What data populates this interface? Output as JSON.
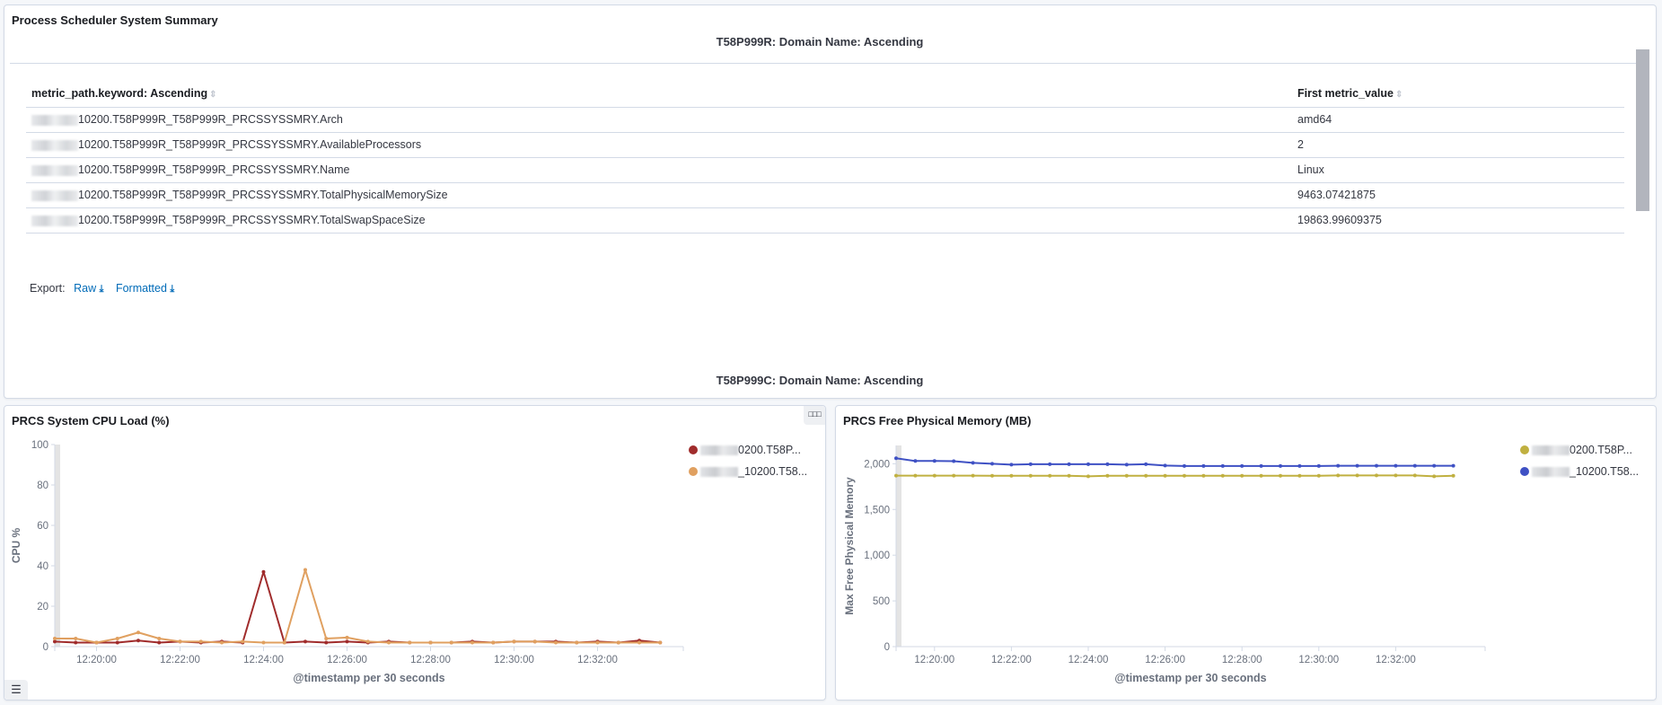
{
  "summary_panel": {
    "title": "Process Scheduler System Summary",
    "domain_title_1": "T58P999R: Domain Name: Ascending",
    "domain_title_2": "T58P999C: Domain Name: Ascending",
    "columns": [
      "metric_path.keyword: Ascending",
      "First metric_value"
    ],
    "sort_icon": "sort-icon",
    "rows": [
      {
        "path": "10200.T58P999R_T58P999R_PRCSSYSSMRY.Arch",
        "value": "amd64"
      },
      {
        "path": "10200.T58P999R_T58P999R_PRCSSYSSMRY.AvailableProcessors",
        "value": "2"
      },
      {
        "path": "10200.T58P999R_T58P999R_PRCSSYSSMRY.Name",
        "value": "Linux"
      },
      {
        "path": "10200.T58P999R_T58P999R_PRCSSYSSMRY.TotalPhysicalMemorySize",
        "value": "9463.07421875"
      },
      {
        "path": "10200.T58P999R_T58P999R_PRCSSYSSMRY.TotalSwapSpaceSize",
        "value": "19863.99609375"
      }
    ],
    "export": {
      "label": "Export:",
      "raw": "Raw",
      "formatted": "Formatted"
    }
  },
  "cpu_panel": {
    "title": "PRCS System CPU Load (%)",
    "options_icon": "ellipsis-icon",
    "legend": [
      {
        "label": "0200.T58P...",
        "color": "#a02c2c"
      },
      {
        "label": "_10200.T58...",
        "color": "#e0a060"
      }
    ]
  },
  "mem_panel": {
    "title": "PRCS Free Physical Memory (MB)",
    "legend": [
      {
        "label": "0200.T58P...",
        "color": "#c0b040"
      },
      {
        "label": "_10200.T58...",
        "color": "#3f51c4"
      }
    ]
  },
  "chart_data": [
    {
      "type": "line",
      "title": "PRCS System CPU Load (%)",
      "xlabel": "@timestamp per 30 seconds",
      "ylabel": "CPU %",
      "ylim": [
        0,
        100
      ],
      "yticks": [
        0,
        20,
        40,
        60,
        80,
        100
      ],
      "xticks": [
        "12:20:00",
        "12:22:00",
        "12:24:00",
        "12:26:00",
        "12:28:00",
        "12:30:00",
        "12:32:00"
      ],
      "x": [
        "12:19:00",
        "12:19:30",
        "12:20:00",
        "12:20:30",
        "12:21:00",
        "12:21:30",
        "12:22:00",
        "12:22:30",
        "12:23:00",
        "12:23:30",
        "12:24:00",
        "12:24:30",
        "12:25:00",
        "12:25:30",
        "12:26:00",
        "12:26:30",
        "12:27:00",
        "12:27:30",
        "12:28:00",
        "12:28:30",
        "12:29:00",
        "12:29:30",
        "12:30:00",
        "12:30:30",
        "12:31:00",
        "12:31:30",
        "12:32:00",
        "12:32:30",
        "12:33:00",
        "12:33:30"
      ],
      "series": [
        {
          "name": "…10200.T58P…",
          "color": "#a02c2c",
          "values": [
            2.5,
            2,
            2,
            2,
            3,
            2,
            2.5,
            2,
            2.5,
            2,
            37,
            2,
            2.5,
            2,
            2.5,
            2,
            2.5,
            2,
            2,
            2,
            2.5,
            2,
            2.5,
            2.5,
            2.5,
            2,
            2.5,
            2,
            3,
            2
          ]
        },
        {
          "name": "…_10200.T58…",
          "color": "#e0a060",
          "values": [
            4,
            4,
            2,
            4,
            7,
            4,
            2.5,
            2.5,
            2,
            2.5,
            2,
            2,
            38,
            4,
            4.5,
            2.5,
            2,
            2,
            2,
            2,
            2,
            2,
            2.5,
            2.5,
            2,
            2,
            2,
            2,
            2,
            2
          ]
        }
      ],
      "legend_position": "right",
      "grid": false
    },
    {
      "type": "line",
      "title": "PRCS Free Physical Memory (MB)",
      "xlabel": "@timestamp per 30 seconds",
      "ylabel": "Max Free Physical Memory",
      "ylim": [
        0,
        2200
      ],
      "yticks": [
        0,
        500,
        1000,
        1500,
        2000
      ],
      "xticks": [
        "12:20:00",
        "12:22:00",
        "12:24:00",
        "12:26:00",
        "12:28:00",
        "12:30:00",
        "12:32:00"
      ],
      "x": [
        "12:19:00",
        "12:19:30",
        "12:20:00",
        "12:20:30",
        "12:21:00",
        "12:21:30",
        "12:22:00",
        "12:22:30",
        "12:23:00",
        "12:23:30",
        "12:24:00",
        "12:24:30",
        "12:25:00",
        "12:25:30",
        "12:26:00",
        "12:26:30",
        "12:27:00",
        "12:27:30",
        "12:28:00",
        "12:28:30",
        "12:29:00",
        "12:29:30",
        "12:30:00",
        "12:30:30",
        "12:31:00",
        "12:31:30",
        "12:32:00",
        "12:32:30",
        "12:33:00",
        "12:33:30"
      ],
      "series": [
        {
          "name": "…0200.T58P…",
          "color": "#c0b040",
          "values": [
            1870,
            1870,
            1870,
            1870,
            1870,
            1868,
            1868,
            1868,
            1868,
            1868,
            1862,
            1868,
            1868,
            1868,
            1868,
            1868,
            1868,
            1868,
            1868,
            1868,
            1868,
            1868,
            1868,
            1872,
            1872,
            1872,
            1872,
            1872,
            1862,
            1868
          ]
        },
        {
          "name": "…_10200.T58…",
          "color": "#3f51c4",
          "values": [
            2060,
            2030,
            2030,
            2028,
            2010,
            2000,
            1990,
            1995,
            1995,
            1995,
            1995,
            1995,
            1990,
            1995,
            1980,
            1975,
            1975,
            1975,
            1975,
            1975,
            1975,
            1975,
            1975,
            1978,
            1978,
            1978,
            1978,
            1978,
            1978,
            1978
          ]
        }
      ],
      "legend_position": "right",
      "grid": false
    }
  ]
}
